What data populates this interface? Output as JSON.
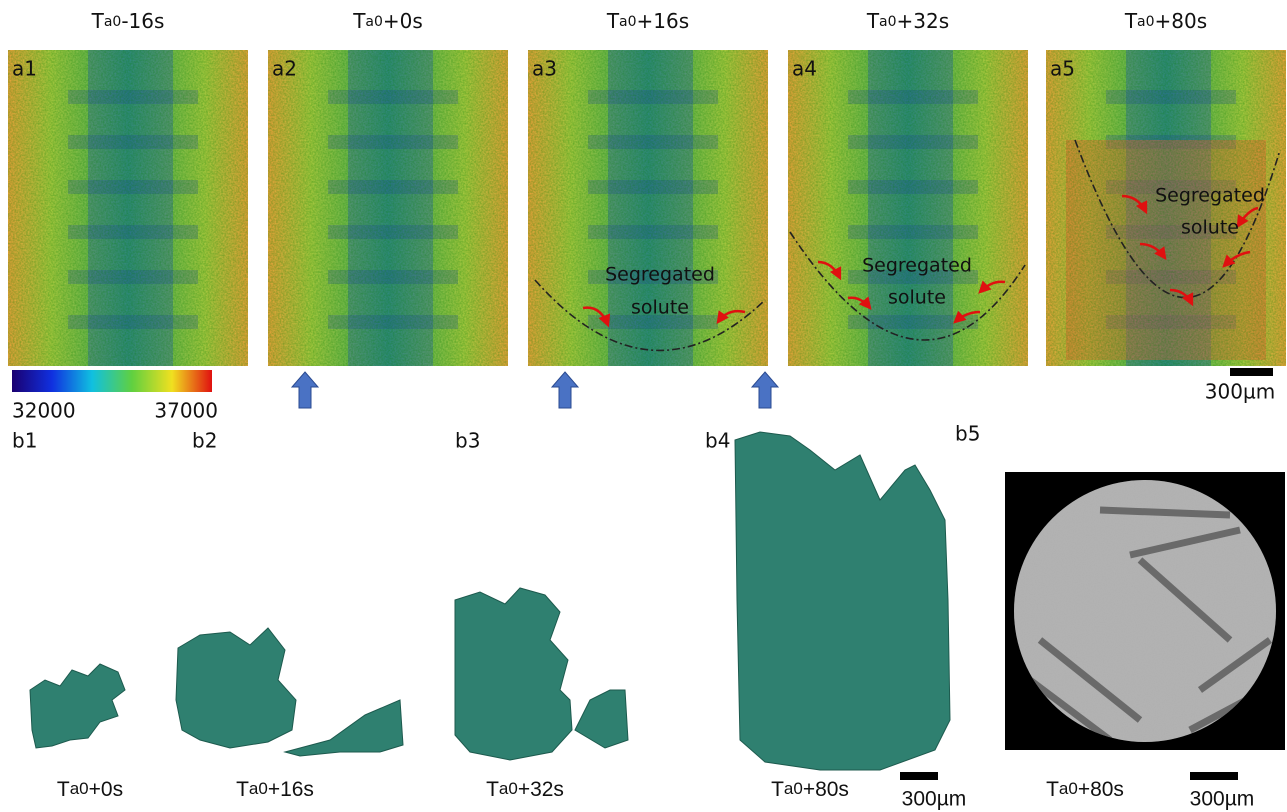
{
  "top_row": {
    "panels": [
      {
        "time": {
          "base": "T",
          "sub": "a0",
          "suffix": "-16s"
        },
        "label": "a1"
      },
      {
        "time": {
          "base": "T",
          "sub": "a0",
          "suffix": "+0s"
        },
        "label": "a2"
      },
      {
        "time": {
          "base": "T",
          "sub": "a0",
          "suffix": "+16s"
        },
        "label": "a3"
      },
      {
        "time": {
          "base": "T",
          "sub": "a0",
          "suffix": "+32s"
        },
        "label": "a4"
      },
      {
        "time": {
          "base": "T",
          "sub": "a0",
          "suffix": "+80s"
        },
        "label": "a5"
      }
    ],
    "annotations": [
      {
        "line1": "Segregated",
        "line2": "solute"
      },
      {
        "line1": "Segregated",
        "line2": "solute"
      },
      {
        "line1": "Segregated",
        "line2": "solute"
      }
    ],
    "colorbar": {
      "min": 32000,
      "max": 37000
    },
    "scale_bar": "300µm"
  },
  "bottom_row": {
    "labels": [
      "b1",
      "b2",
      "b3",
      "b4",
      "b5"
    ],
    "captions": [
      {
        "base": "T",
        "sub": "a0",
        "suffix": "+0s"
      },
      {
        "base": "T",
        "sub": "a0",
        "suffix": "+16s"
      },
      {
        "base": "T",
        "sub": "a0",
        "suffix": "+32s"
      },
      {
        "base": "T",
        "sub": "a0",
        "suffix": "+80s"
      },
      {
        "base": "T",
        "sub": "a0",
        "suffix": "+80s"
      }
    ],
    "scale_bars": [
      "300µm",
      "300µm"
    ]
  }
}
